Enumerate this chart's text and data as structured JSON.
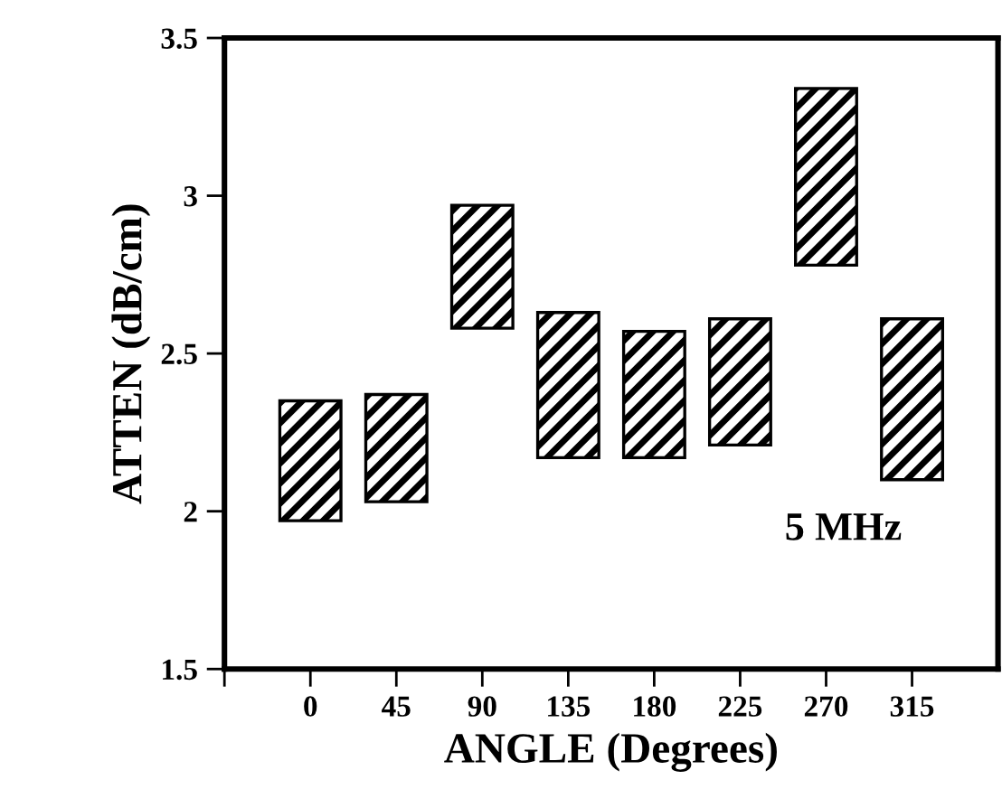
{
  "chart_data": {
    "type": "bar",
    "xlabel": "ANGLE (Degrees)",
    "ylabel": "ATTEN (dB/cm)",
    "x": [
      0,
      45,
      90,
      135,
      180,
      225,
      270,
      315
    ],
    "base": [
      1.97,
      2.03,
      2.58,
      2.17,
      2.17,
      2.21,
      2.78,
      2.1
    ],
    "values": [
      0.38,
      0.34,
      0.39,
      0.46,
      0.4,
      0.4,
      0.56,
      0.51
    ],
    "color": "#000000",
    "xlim": [
      -45,
      360
    ],
    "xticks": [
      {
        "value": -45,
        "label": null
      },
      0,
      45,
      90,
      135,
      180,
      225,
      270,
      315
    ],
    "ylim": [
      1.5,
      3.5
    ],
    "yticks": [
      1.5,
      2,
      2.5,
      3,
      3.5
    ],
    "annotations": [
      "5 MHz"
    ],
    "grid": false
  }
}
